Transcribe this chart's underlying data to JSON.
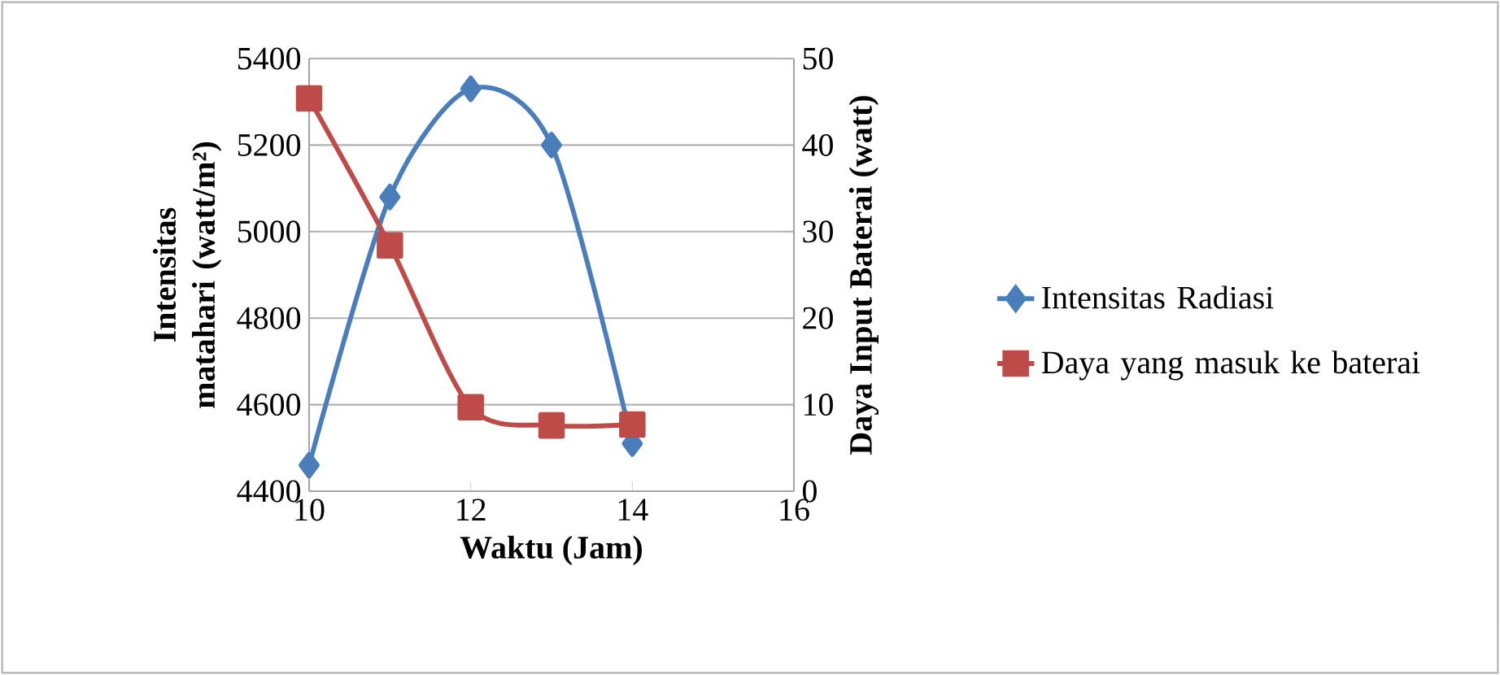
{
  "chart_data": {
    "type": "line",
    "xlabel": "Waktu (Jam)",
    "ylabel": "Intensitas matahari (watt/m²)",
    "y2label": "Daya Input Baterai (watt)",
    "x": [
      10,
      11,
      12,
      13,
      14
    ],
    "series": [
      {
        "name": "Intensitas Radiasi",
        "color": "#4a7ebb",
        "marker": "diamond",
        "values": [
          4460,
          5080,
          5330,
          5200,
          4510
        ]
      },
      {
        "name": "Daya yang masuk ke baterai",
        "color": "#be4b48",
        "marker": "square",
        "axis": "y2",
        "values": [
          45.4,
          28.4,
          9.7,
          7.6,
          7.7
        ]
      }
    ],
    "xlim": [
      10,
      16
    ],
    "xticks": [
      10,
      12,
      14,
      16
    ],
    "ylim": [
      4400,
      5400
    ],
    "yticks": [
      4400,
      4600,
      4800,
      5000,
      5200,
      5400
    ],
    "y2lim": [
      0,
      50
    ],
    "y2ticks": [
      0,
      10,
      20,
      30,
      40,
      50
    ],
    "grid": "y",
    "legend": "right",
    "line_style": "solid"
  }
}
